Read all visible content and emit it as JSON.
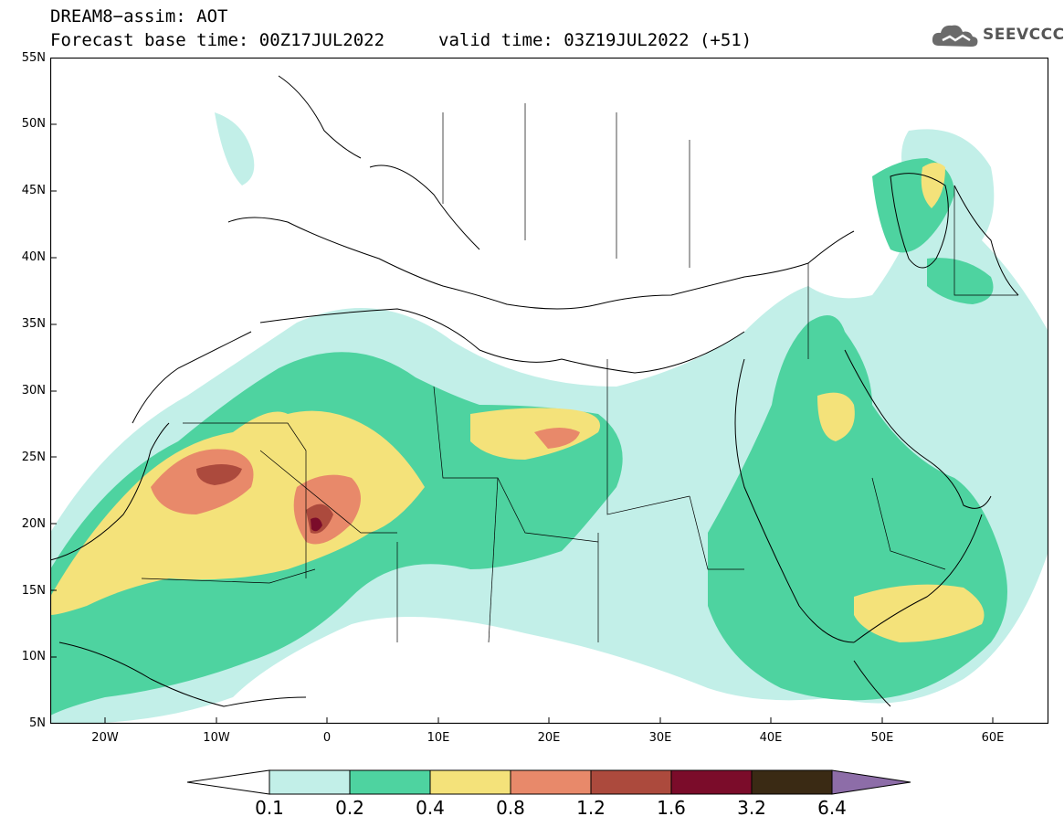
{
  "header": {
    "line1": "DREAM8−assim: AOT",
    "line2": "Forecast base time: 00Z17JUL2022",
    "valid": "valid time: 03Z19JUL2022 (+51)"
  },
  "logo": {
    "text": "SEEVCCC",
    "icon": "cloud-icon"
  },
  "map": {
    "lon_range": [
      -25,
      65
    ],
    "lat_range": [
      5,
      55
    ],
    "lat_labels": [
      "55N",
      "50N",
      "45N",
      "40N",
      "35N",
      "30N",
      "25N",
      "20N",
      "15N",
      "10N",
      "5N"
    ],
    "lon_labels": [
      "20W",
      "10W",
      "0",
      "10E",
      "20E",
      "30E",
      "40E",
      "50E",
      "60E"
    ],
    "background": "#ffffff",
    "border_color": "#000000"
  },
  "legend": {
    "labels": [
      "0.1",
      "0.2",
      "0.4",
      "0.8",
      "1.2",
      "1.6",
      "3.2",
      "6.4"
    ],
    "colors": [
      "#ffffff",
      "#c2efe8",
      "#4ed3a0",
      "#f4e27a",
      "#e8896a",
      "#ac4a3d",
      "#7b0c2a",
      "#3a2a14",
      "#8d6da8"
    ]
  },
  "chart_data": {
    "type": "heatmap",
    "title": "DREAM8−assim: AOT",
    "subtitle": "Forecast base time: 00Z17JUL2022    valid time: 03Z19JUL2022 (+51)",
    "levels": [
      0.1,
      0.2,
      0.4,
      0.8,
      1.2,
      1.6,
      3.2,
      6.4
    ],
    "xlim": [
      -25,
      65
    ],
    "ylim": [
      5,
      55
    ]
  }
}
